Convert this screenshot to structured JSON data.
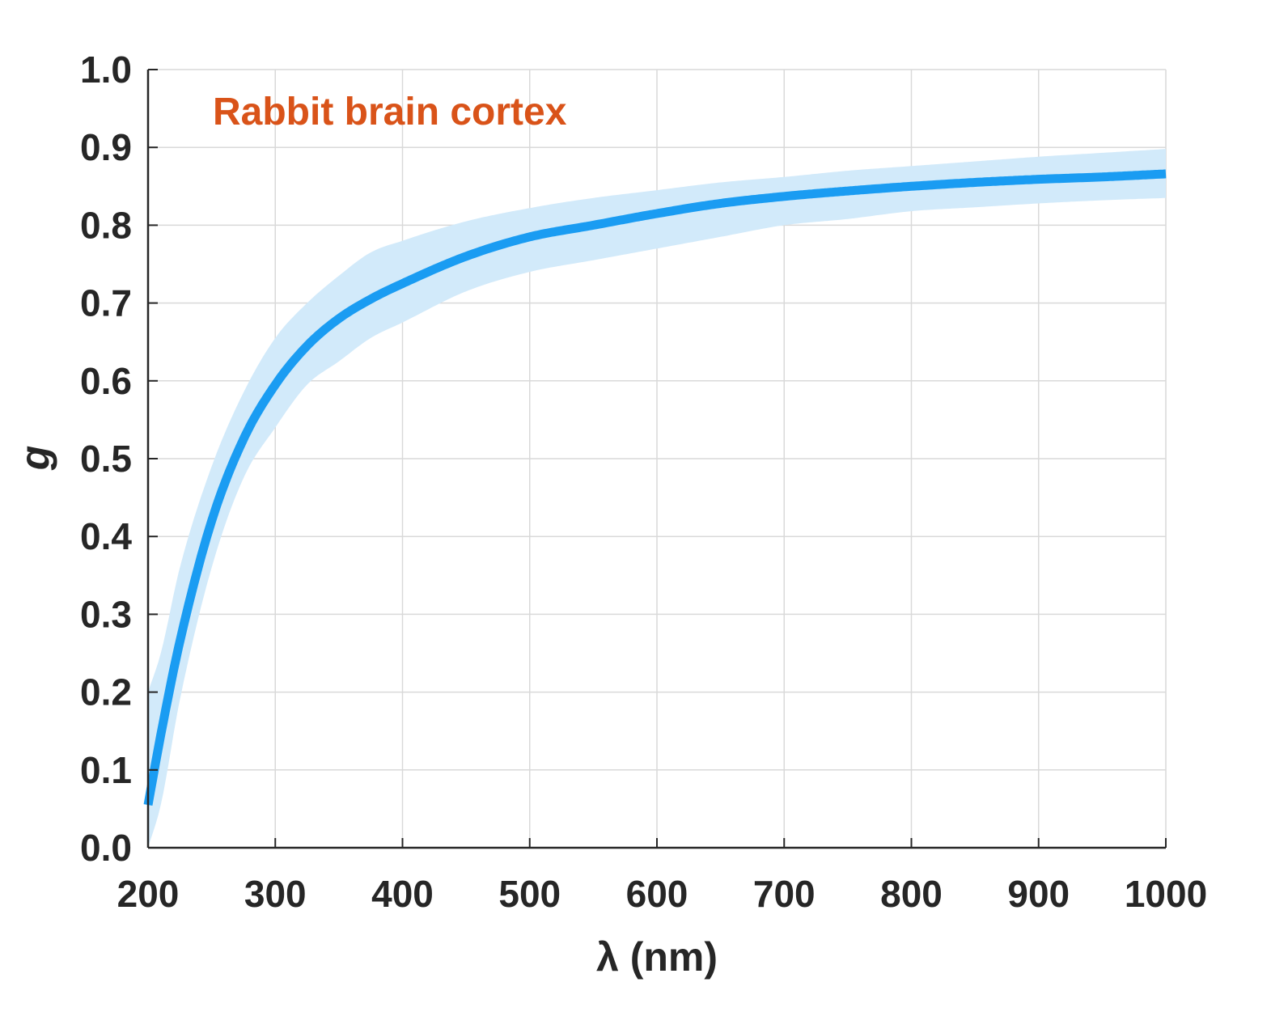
{
  "chart_data": {
    "type": "line",
    "title": "",
    "annotation": {
      "text": "Rabbit brain cortex",
      "color": "#d95319"
    },
    "xlabel": "λ (nm)",
    "ylabel": "g",
    "xlim": [
      200,
      1000
    ],
    "ylim": [
      0.0,
      1.0
    ],
    "xticks": [
      "200",
      "300",
      "400",
      "500",
      "600",
      "700",
      "800",
      "900",
      "1000"
    ],
    "yticks": [
      "0.0",
      "0.1",
      "0.2",
      "0.3",
      "0.4",
      "0.5",
      "0.6",
      "0.7",
      "0.8",
      "0.9",
      "1.0"
    ],
    "grid": true,
    "colors": {
      "line": "#1a9cf2",
      "band": "#d2eafa",
      "grid": "#d9d9d9",
      "axis": "#262626"
    },
    "series": [
      {
        "x": [
          200,
          210,
          225,
          250,
          275,
          300,
          325,
          350,
          375,
          400,
          450,
          500,
          550,
          600,
          650,
          700,
          750,
          800,
          850,
          900,
          950,
          1000
        ],
        "values": [
          0.055,
          0.145,
          0.265,
          0.42,
          0.525,
          0.595,
          0.645,
          0.68,
          0.705,
          0.725,
          0.76,
          0.785,
          0.8,
          0.815,
          0.828,
          0.837,
          0.844,
          0.85,
          0.855,
          0.859,
          0.862,
          0.866
        ],
        "lower": [
          0.0,
          0.055,
          0.19,
          0.36,
          0.475,
          0.54,
          0.595,
          0.625,
          0.655,
          0.675,
          0.715,
          0.74,
          0.755,
          0.77,
          0.785,
          0.8,
          0.808,
          0.818,
          0.823,
          0.828,
          0.832,
          0.835
        ],
        "upper": [
          0.2,
          0.25,
          0.36,
          0.49,
          0.585,
          0.655,
          0.7,
          0.735,
          0.765,
          0.78,
          0.805,
          0.822,
          0.835,
          0.845,
          0.855,
          0.862,
          0.87,
          0.876,
          0.882,
          0.888,
          0.893,
          0.898
        ]
      }
    ]
  }
}
